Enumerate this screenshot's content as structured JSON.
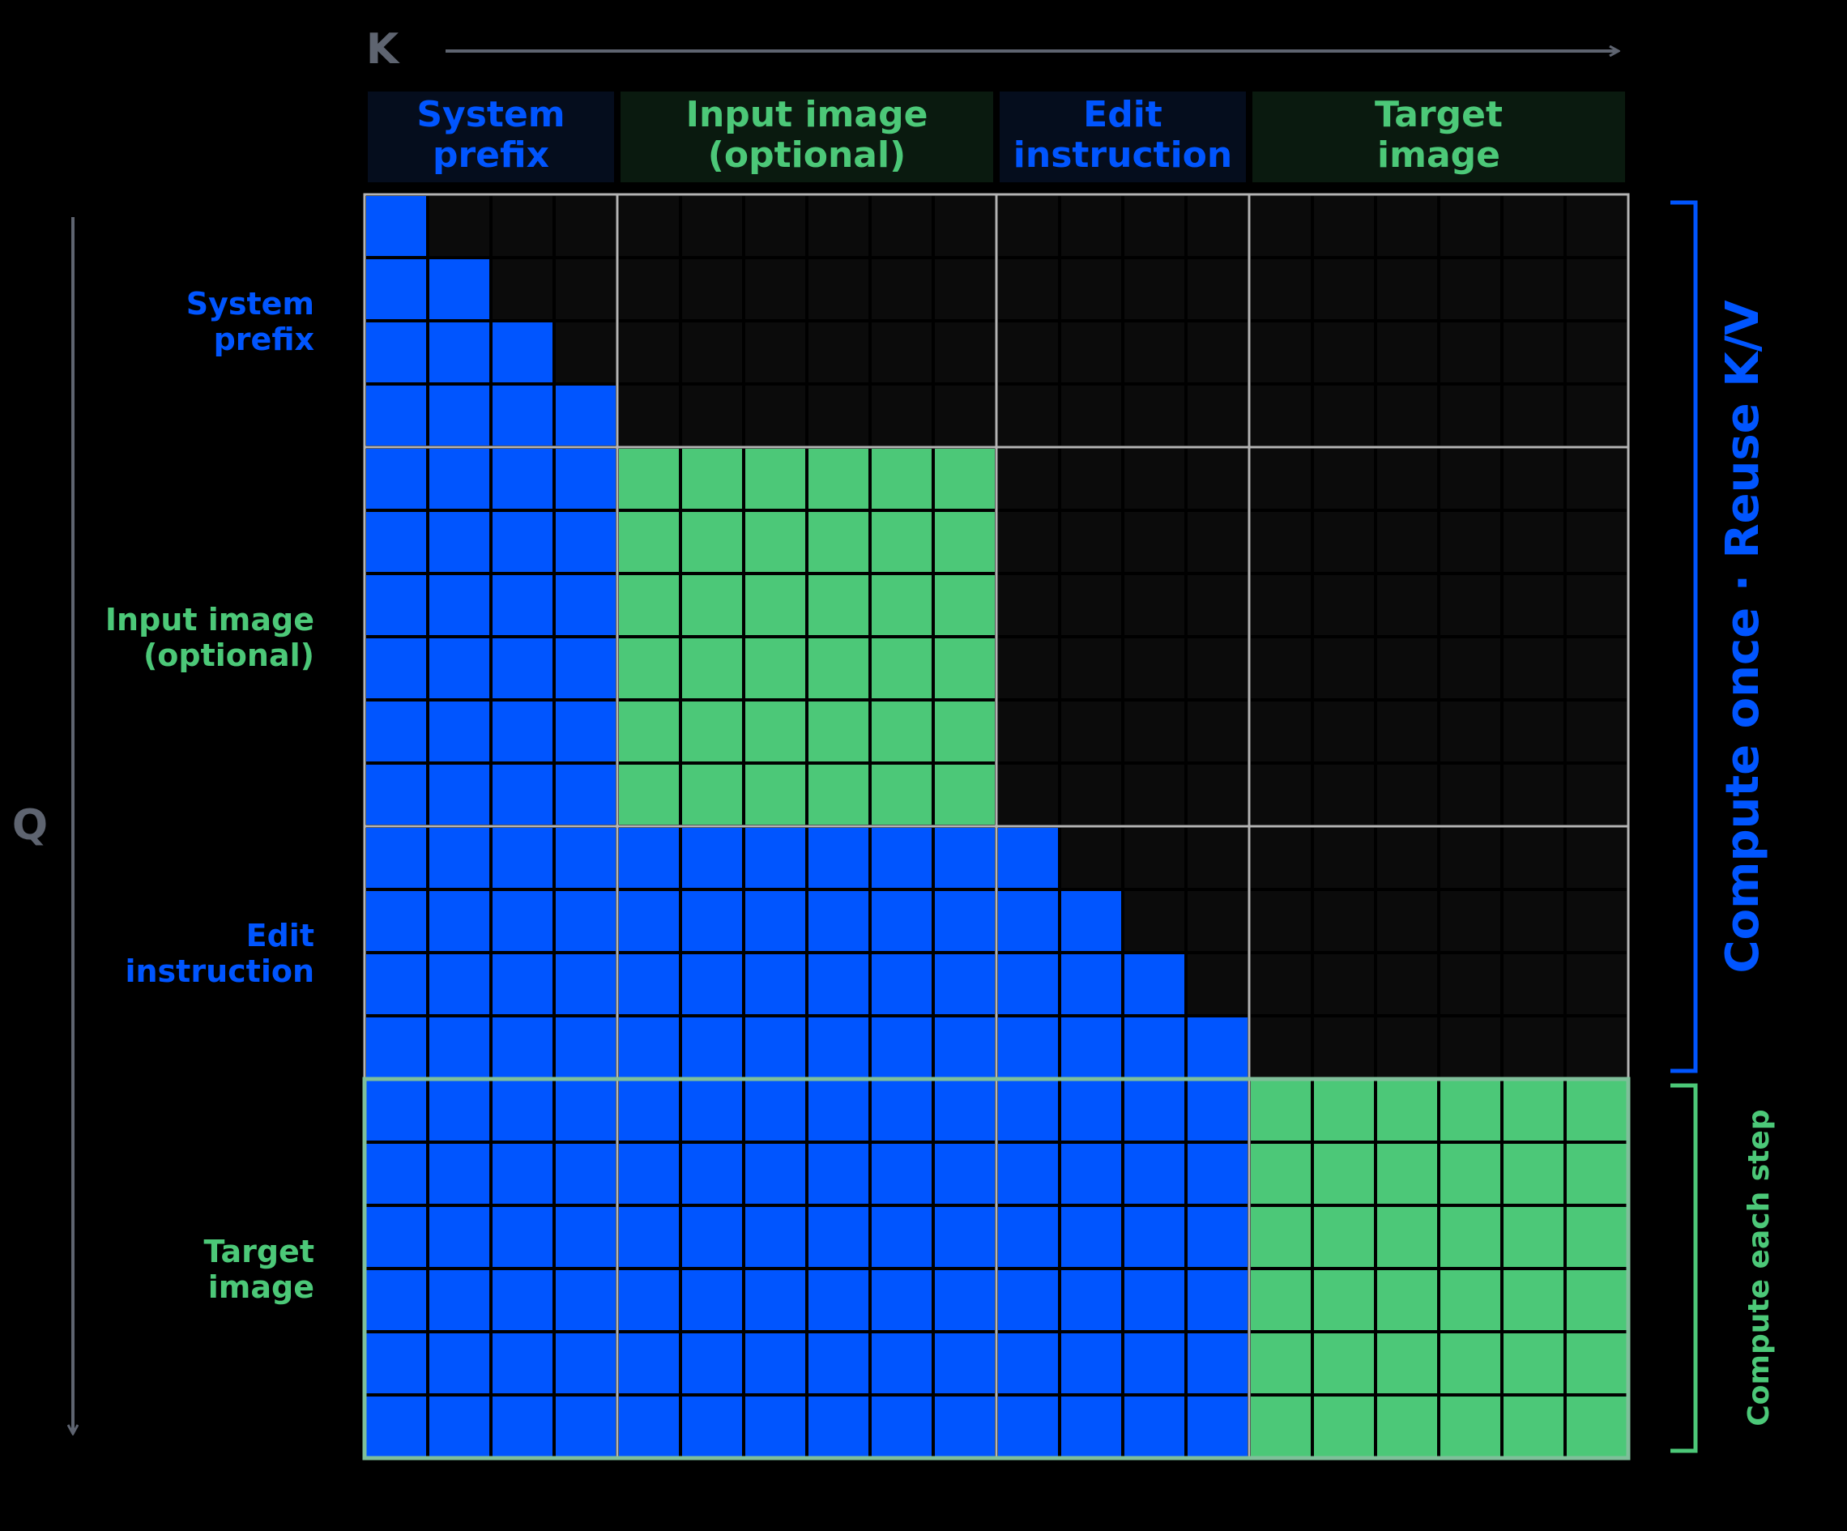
{
  "axes": {
    "k_label": "K",
    "q_label": "Q"
  },
  "segments": [
    {
      "id": "system-prefix",
      "line1": "System",
      "line2": "prefix",
      "size": 4,
      "color": "blue"
    },
    {
      "id": "input-image",
      "line1": "Input image",
      "line2": "(optional)",
      "size": 6,
      "color": "green"
    },
    {
      "id": "edit-instruction",
      "line1": "Edit",
      "line2": "instruction",
      "size": 4,
      "color": "blue"
    },
    {
      "id": "target-image",
      "line1": "Target",
      "line2": "image",
      "size": 6,
      "color": "green"
    }
  ],
  "brackets": {
    "cached": {
      "label": "Compute once · Reuse K/V",
      "rows": "first three segments"
    },
    "per_step": {
      "label": "Compute each step",
      "rows": "target image"
    }
  },
  "mask_rule": "Causal within text segments (system prefix, edit instruction); full bidirectional within image segments; each segment attends to all earlier segments.",
  "colors": {
    "blue": "#0055ff",
    "green": "#4cc878",
    "masked": "#0b0b0b",
    "header_blue_bg": "#050d1d",
    "header_green_bg": "#0a1a0f",
    "axis": "#5e6470",
    "grid": "#b4b4b4",
    "step_border": "#7fbf9a"
  }
}
